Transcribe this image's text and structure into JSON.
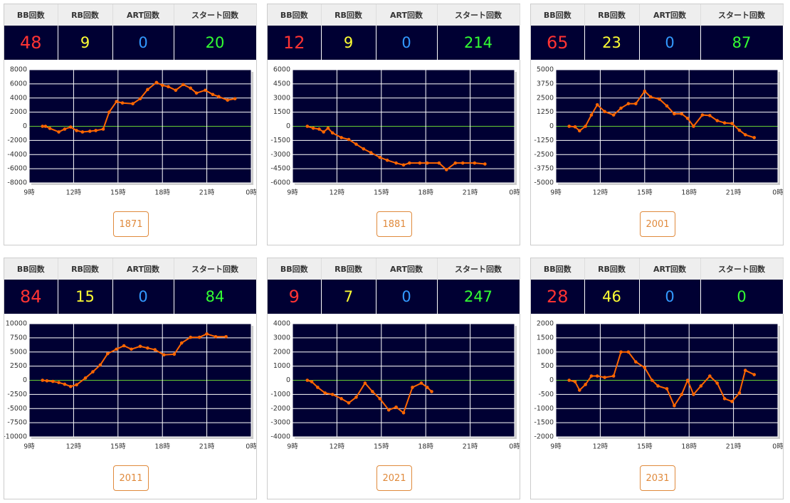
{
  "panels": [
    {
      "headers": [
        "BB回数",
        "RB回数",
        "ART回数",
        "スタート回数"
      ],
      "values": [
        48,
        9,
        0,
        20
      ],
      "button": "1871"
    },
    {
      "headers": [
        "BB回数",
        "RB回数",
        "ART回数",
        "スタート回数"
      ],
      "values": [
        12,
        9,
        0,
        214
      ],
      "button": "1881"
    },
    {
      "headers": [
        "BB回数",
        "RB回数",
        "ART回数",
        "スタート回数"
      ],
      "values": [
        65,
        23,
        0,
        87
      ],
      "button": "2001"
    },
    {
      "headers": [
        "BB回数",
        "RB回数",
        "ART回数",
        "スタート回数"
      ],
      "values": [
        84,
        15,
        0,
        84
      ],
      "button": "2011"
    },
    {
      "headers": [
        "BB回数",
        "RB回数",
        "ART回数",
        "スタート回数"
      ],
      "values": [
        9,
        7,
        0,
        247
      ],
      "button": "2021"
    },
    {
      "headers": [
        "BB回数",
        "RB回数",
        "ART回数",
        "スタート回数"
      ],
      "values": [
        28,
        46,
        0,
        0
      ],
      "button": "2031"
    }
  ],
  "chart_data": [
    {
      "type": "line",
      "color": "#ff6600",
      "grid": true,
      "xlim": [
        9,
        24
      ],
      "xticks": [
        {
          "value": 9,
          "label": "9時"
        },
        {
          "value": 12,
          "label": "12時"
        },
        {
          "value": 15,
          "label": "15時"
        },
        {
          "value": 18,
          "label": "18時"
        },
        {
          "value": 21,
          "label": "21時"
        },
        {
          "value": 24,
          "label": "0時"
        }
      ],
      "ylim": [
        -8000,
        8000
      ],
      "yticks": [
        -8000,
        -6000,
        -4000,
        -2000,
        0,
        2000,
        4000,
        6000,
        8000
      ],
      "x": [
        9.9,
        10.1,
        10.4,
        11.0,
        11.4,
        11.8,
        12.2,
        12.6,
        13.1,
        13.5,
        14.0,
        14.4,
        14.9,
        15.3,
        16.0,
        16.5,
        17.0,
        17.6,
        18.0,
        18.4,
        18.9,
        19.4,
        19.9,
        20.3,
        20.9,
        21.4,
        21.8,
        22.4,
        22.9
      ],
      "values": [
        0,
        0,
        -300,
        -800,
        -400,
        -100,
        -600,
        -800,
        -700,
        -600,
        -400,
        2000,
        3500,
        3300,
        3200,
        3900,
        5200,
        6200,
        5800,
        5600,
        5100,
        5900,
        5400,
        4700,
        5100,
        4500,
        4200,
        3700,
        3900
      ]
    },
    {
      "type": "line",
      "color": "#ff6600",
      "grid": true,
      "xlim": [
        9,
        24
      ],
      "xticks": [
        {
          "value": 9,
          "label": "9時"
        },
        {
          "value": 12,
          "label": "12時"
        },
        {
          "value": 15,
          "label": "15時"
        },
        {
          "value": 18,
          "label": "18時"
        },
        {
          "value": 21,
          "label": "21時"
        },
        {
          "value": 24,
          "label": "0時"
        }
      ],
      "ylim": [
        -6000,
        6000
      ],
      "yticks": [
        -6000,
        -4500,
        -3000,
        -1500,
        0,
        1500,
        3000,
        4500,
        6000
      ],
      "x": [
        10.0,
        10.4,
        10.8,
        11.1,
        11.4,
        11.7,
        12.3,
        12.8,
        13.3,
        13.8,
        14.3,
        14.9,
        15.4,
        16.0,
        16.5,
        16.9,
        17.6,
        18.1,
        18.9,
        19.4,
        20.0,
        20.5,
        21.3,
        22.0
      ],
      "values": [
        0,
        -200,
        -300,
        -600,
        -200,
        -700,
        -1200,
        -1400,
        -1900,
        -2400,
        -2800,
        -3300,
        -3600,
        -3900,
        -4100,
        -3900,
        -3900,
        -3900,
        -3900,
        -4600,
        -3900,
        -3900,
        -3900,
        -4000
      ]
    },
    {
      "type": "line",
      "color": "#ff6600",
      "grid": true,
      "xlim": [
        9,
        24
      ],
      "xticks": [
        {
          "value": 9,
          "label": "9時"
        },
        {
          "value": 12,
          "label": "12時"
        },
        {
          "value": 15,
          "label": "15時"
        },
        {
          "value": 18,
          "label": "18時"
        },
        {
          "value": 21,
          "label": "21時"
        },
        {
          "value": 24,
          "label": "0時"
        }
      ],
      "ylim": [
        -5000,
        5000
      ],
      "yticks": [
        -5000,
        -3750,
        -2500,
        -1250,
        0,
        1250,
        2500,
        3750,
        5000
      ],
      "x": [
        9.9,
        10.3,
        10.6,
        11.0,
        11.4,
        11.8,
        12.3,
        12.9,
        13.4,
        13.9,
        14.4,
        15.0,
        15.4,
        16.0,
        16.5,
        17.0,
        17.5,
        17.9,
        18.3,
        18.9,
        19.4,
        19.9,
        20.4,
        20.9,
        21.4,
        21.8,
        22.4
      ],
      "values": [
        0,
        -50,
        -400,
        0,
        1000,
        1900,
        1300,
        1000,
        1600,
        2000,
        2000,
        3100,
        2600,
        2400,
        1800,
        1100,
        1100,
        700,
        0,
        1000,
        950,
        500,
        300,
        250,
        -350,
        -750,
        -1000
      ]
    },
    {
      "type": "line",
      "color": "#ff6600",
      "grid": true,
      "xlim": [
        9,
        24
      ],
      "xticks": [
        {
          "value": 9,
          "label": "9時"
        },
        {
          "value": 12,
          "label": "12時"
        },
        {
          "value": 15,
          "label": "15時"
        },
        {
          "value": 18,
          "label": "18時"
        },
        {
          "value": 21,
          "label": "21時"
        },
        {
          "value": 24,
          "label": "0時"
        }
      ],
      "ylim": [
        -10000,
        10000
      ],
      "yticks": [
        -10000,
        -7500,
        -5000,
        -2500,
        0,
        2500,
        5000,
        7500,
        10000
      ],
      "x": [
        9.9,
        10.2,
        10.6,
        11.0,
        11.4,
        11.8,
        12.2,
        12.8,
        13.3,
        13.8,
        14.3,
        14.9,
        15.4,
        15.9,
        16.5,
        17.0,
        17.5,
        18.1,
        18.8,
        19.3,
        19.9,
        20.5,
        21.0,
        21.6,
        22.3
      ],
      "values": [
        0,
        -100,
        -200,
        -400,
        -700,
        -1100,
        -800,
        400,
        1500,
        2700,
        4700,
        5500,
        6100,
        5500,
        6000,
        5700,
        5400,
        4500,
        4600,
        6600,
        7600,
        7600,
        8200,
        7700,
        7700
      ]
    },
    {
      "type": "line",
      "color": "#ff6600",
      "grid": true,
      "xlim": [
        9,
        24
      ],
      "xticks": [
        {
          "value": 9,
          "label": "9時"
        },
        {
          "value": 12,
          "label": "12時"
        },
        {
          "value": 15,
          "label": "15時"
        },
        {
          "value": 18,
          "label": "18時"
        },
        {
          "value": 21,
          "label": "21時"
        },
        {
          "value": 24,
          "label": "0時"
        }
      ],
      "ylim": [
        -4000,
        4000
      ],
      "yticks": [
        -4000,
        -3000,
        -2000,
        -1000,
        0,
        1000,
        2000,
        3000,
        4000
      ],
      "x": [
        10.0,
        10.3,
        10.7,
        11.2,
        11.7,
        12.3,
        12.8,
        13.3,
        13.9,
        14.4,
        14.9,
        15.5,
        16.0,
        16.5,
        17.1,
        17.7,
        18.1,
        18.4
      ],
      "values": [
        0,
        -100,
        -500,
        -900,
        -1000,
        -1300,
        -1600,
        -1200,
        -200,
        -800,
        -1300,
        -2100,
        -1900,
        -2300,
        -500,
        -200,
        -500,
        -800
      ]
    },
    {
      "type": "line",
      "color": "#ff6600",
      "grid": true,
      "xlim": [
        9,
        24
      ],
      "xticks": [
        {
          "value": 9,
          "label": "9時"
        },
        {
          "value": 12,
          "label": "12時"
        },
        {
          "value": 15,
          "label": "15時"
        },
        {
          "value": 18,
          "label": "18時"
        },
        {
          "value": 21,
          "label": "21時"
        },
        {
          "value": 24,
          "label": "0時"
        }
      ],
      "ylim": [
        -2000,
        2000
      ],
      "yticks": [
        -2000,
        -1500,
        -1000,
        -500,
        0,
        500,
        1000,
        1500,
        2000
      ],
      "x": [
        9.9,
        10.3,
        10.6,
        11.0,
        11.4,
        11.8,
        12.3,
        12.9,
        13.4,
        13.9,
        14.4,
        15.0,
        15.5,
        15.9,
        16.5,
        17.0,
        17.5,
        17.9,
        18.3,
        18.8,
        19.4,
        19.9,
        20.4,
        20.9,
        21.4,
        21.8,
        22.4
      ],
      "values": [
        0,
        -50,
        -350,
        -150,
        150,
        150,
        100,
        150,
        1000,
        1000,
        650,
        450,
        0,
        -200,
        -300,
        -900,
        -500,
        0,
        -500,
        -200,
        150,
        -100,
        -650,
        -750,
        -450,
        350,
        200
      ]
    }
  ]
}
